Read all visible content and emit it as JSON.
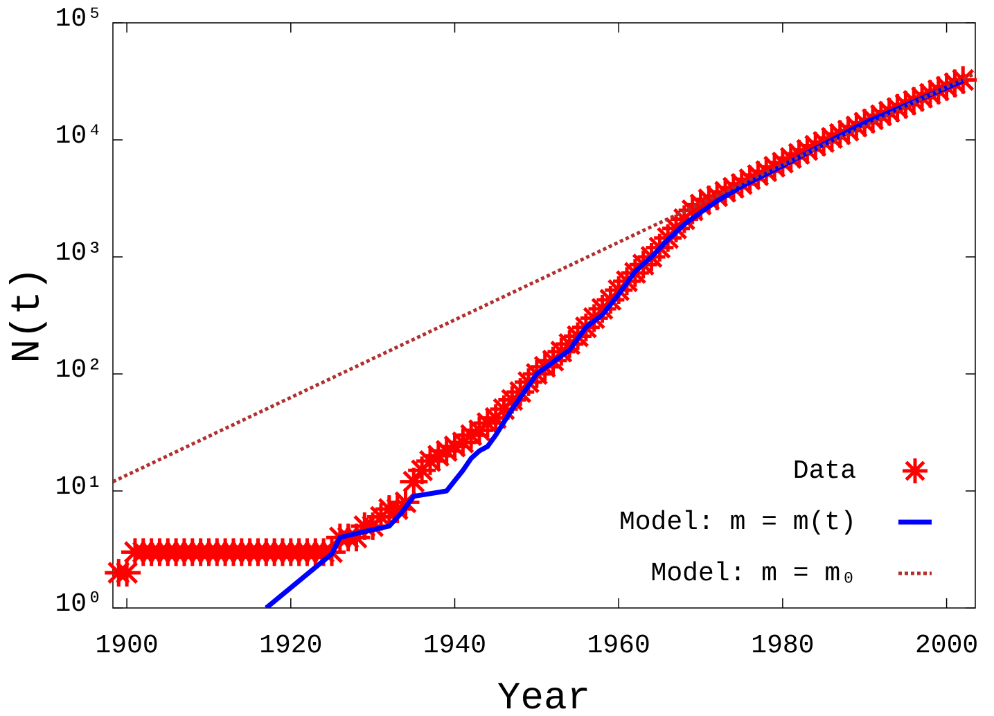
{
  "chart_data": {
    "type": "line",
    "xlabel": "Year",
    "ylabel": "N(t)",
    "yscale": "log",
    "xlim": [
      1898.3,
      2003.5
    ],
    "xticks": [
      1900,
      1920,
      1940,
      1960,
      1980,
      2000
    ],
    "ylim": [
      1,
      100000
    ],
    "yticks": [
      {
        "value": 1,
        "label": "10⁰"
      },
      {
        "value": 10,
        "label": "10¹"
      },
      {
        "value": 100,
        "label": "10²"
      },
      {
        "value": 1000,
        "label": "10³"
      },
      {
        "value": 10000,
        "label": "10⁴"
      },
      {
        "value": 100000,
        "label": "10⁵"
      }
    ],
    "legend": "lower right",
    "series": [
      {
        "name": "Data",
        "color": "#ff0000",
        "marker": "asterisk",
        "x": [
          1899,
          1900,
          1901,
          1902,
          1903,
          1904,
          1905,
          1906,
          1907,
          1908,
          1909,
          1910,
          1911,
          1912,
          1913,
          1914,
          1915,
          1916,
          1917,
          1918,
          1919,
          1920,
          1921,
          1922,
          1923,
          1924,
          1925,
          1926,
          1927,
          1928,
          1929,
          1930,
          1931,
          1932,
          1933,
          1934,
          1935,
          1936,
          1937,
          1938,
          1939,
          1940,
          1941,
          1942,
          1943,
          1944,
          1945,
          1946,
          1947,
          1948,
          1949,
          1950,
          1951,
          1952,
          1953,
          1954,
          1955,
          1956,
          1957,
          1958,
          1959,
          1960,
          1961,
          1962,
          1963,
          1964,
          1965,
          1966,
          1967,
          1968,
          1969,
          1970,
          1971,
          1972,
          1973,
          1974,
          1975,
          1976,
          1977,
          1978,
          1979,
          1980,
          1981,
          1982,
          1983,
          1984,
          1985,
          1986,
          1987,
          1988,
          1989,
          1990,
          1991,
          1992,
          1993,
          1994,
          1995,
          1996,
          1997,
          1998,
          1999,
          2000,
          2001,
          2002
        ],
        "values": [
          2,
          2,
          3,
          3,
          3,
          3,
          3,
          3,
          3,
          3,
          3,
          3,
          3,
          3,
          3,
          3,
          3,
          3,
          3,
          3,
          3,
          3,
          3,
          3,
          3,
          3,
          3,
          4,
          4,
          4,
          5,
          5,
          6,
          7,
          7,
          8,
          12,
          15,
          18,
          20,
          22,
          24,
          26,
          30,
          33,
          38,
          42,
          50,
          60,
          70,
          85,
          100,
          115,
          130,
          155,
          180,
          210,
          250,
          300,
          360,
          430,
          520,
          620,
          730,
          860,
          1000,
          1200,
          1450,
          1750,
          2100,
          2500,
          2800,
          3100,
          3300,
          3600,
          3900,
          4200,
          4600,
          5000,
          5400,
          5900,
          6400,
          7000,
          7600,
          8200,
          8900,
          9600,
          10400,
          11200,
          12000,
          13000,
          14000,
          15000,
          16200,
          17400,
          18700,
          20000,
          21500,
          23000,
          24700,
          26500,
          28400,
          30400,
          32500
        ]
      },
      {
        "name": "Model: m = m(t)",
        "color": "#0000ff",
        "linestyle": "solid",
        "x": [
          1917,
          1925,
          1926,
          1929,
          1932,
          1933.5,
          1935,
          1939,
          1941,
          1942,
          1943,
          1944,
          1945,
          1947,
          1950,
          1954,
          1956,
          1958,
          1960,
          1962,
          1964,
          1966,
          1968,
          1970,
          1972,
          1975,
          1980,
          1990,
          2002
        ],
        "values": [
          1,
          2.9,
          4,
          4.5,
          5,
          6.5,
          9,
          10,
          15,
          19,
          22,
          24,
          30,
          50,
          100,
          160,
          250,
          320,
          480,
          750,
          1000,
          1400,
          1900,
          2400,
          3000,
          4000,
          6000,
          14000,
          32000
        ]
      },
      {
        "name": "Model: m = m₀",
        "color": "#b03030",
        "linestyle": "dotted",
        "x": [
          1898.3,
          2003.5
        ],
        "values": [
          12,
          37000
        ]
      }
    ]
  }
}
